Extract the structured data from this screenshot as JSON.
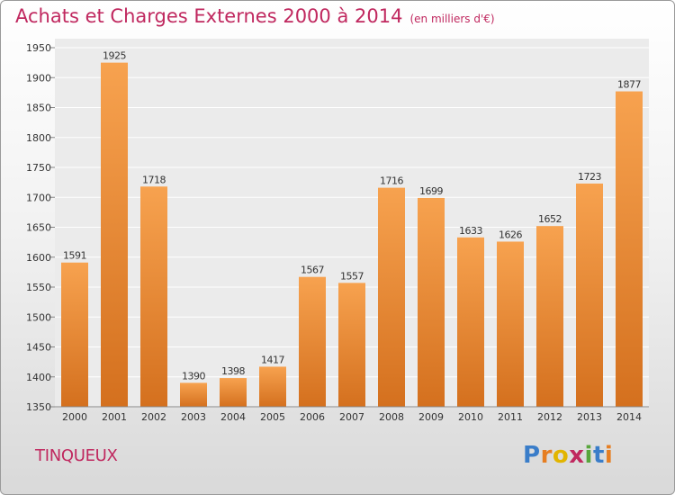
{
  "title": "Achats et Charges Externes 2000 à 2014",
  "subtitle": "(en milliers d'€)",
  "city": "TINQUEUX",
  "logo": {
    "letters": [
      "P",
      "r",
      "o",
      "x",
      "i",
      "t",
      "i"
    ],
    "colors": [
      "#3a7dc9",
      "#e67e22",
      "#e2b500",
      "#c0285f",
      "#58a63c",
      "#3a7dc9",
      "#e67e22"
    ]
  },
  "colors": {
    "bar_top": "#f7a24f",
    "bar_bottom": "#d4701e",
    "text": "#c0285f",
    "grid": "#ffffff"
  },
  "chart_data": {
    "type": "bar",
    "categories": [
      "2000",
      "2001",
      "2002",
      "2003",
      "2004",
      "2005",
      "2006",
      "2007",
      "2008",
      "2009",
      "2010",
      "2011",
      "2012",
      "2013",
      "2014"
    ],
    "values": [
      1591,
      1925,
      1718,
      1390,
      1398,
      1417,
      1567,
      1557,
      1716,
      1699,
      1633,
      1626,
      1652,
      1723,
      1877
    ],
    "ylim": [
      1350,
      1950
    ],
    "yticks": [
      1350,
      1400,
      1450,
      1500,
      1550,
      1600,
      1650,
      1700,
      1750,
      1800,
      1850,
      1900,
      1950
    ],
    "grid": true,
    "xlabel": "",
    "ylabel": ""
  }
}
